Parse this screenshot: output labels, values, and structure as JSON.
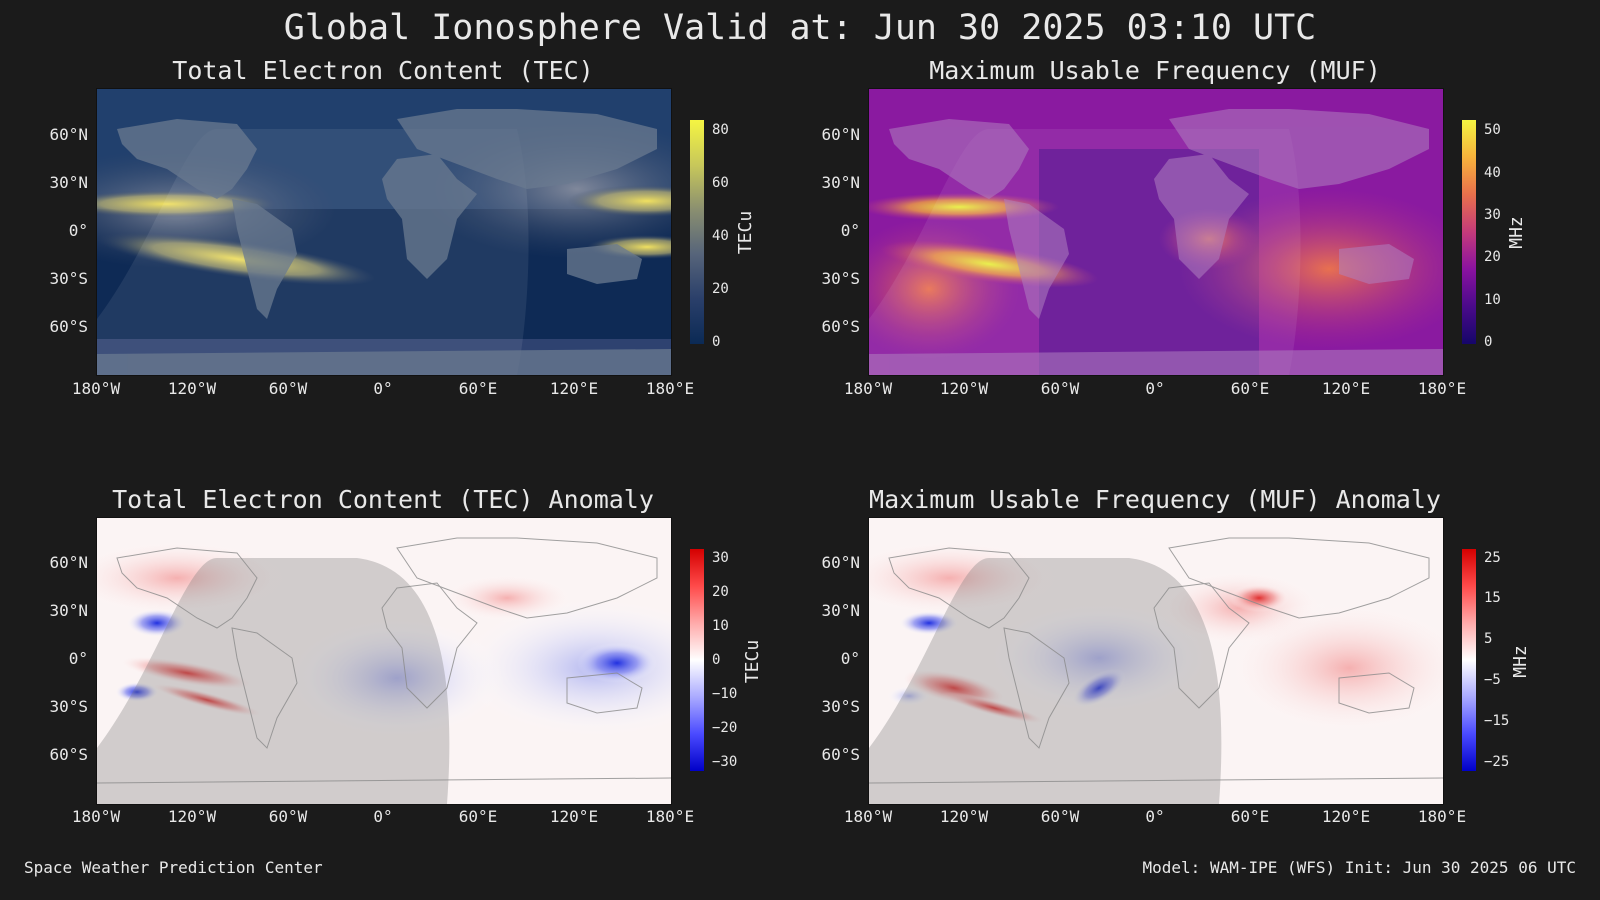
{
  "title": "Global Ionosphere Valid at: Jun 30 2025 03:10 UTC",
  "lat_ticks": [
    "60°N",
    "30°N",
    "0°",
    "30°S",
    "60°S"
  ],
  "lon_ticks": [
    "180°W",
    "120°W",
    "60°W",
    "0°",
    "60°E",
    "120°E",
    "180°E"
  ],
  "panels": [
    {
      "title": "Total Electron Content (TEC)",
      "unit": "TECu",
      "ticks": [
        "80",
        "60",
        "40",
        "20",
        "0"
      ],
      "gradient": "linear-gradient(to bottom,#f5f542,#c8c85a,#8a8f70,#56647a,#2a3f6a,#0b2a55)"
    },
    {
      "title": "Maximum Usable Frequency (MUF)",
      "unit": "MHz",
      "ticks": [
        "50",
        "40",
        "30",
        "20",
        "10",
        "0"
      ],
      "gradient": "linear-gradient(to bottom,#f5f542,#f7b23c,#e8704c,#c53b7a,#8a12a0,#4a0a8a,#15066a)"
    },
    {
      "title": "Total Electron Content (TEC) Anomaly",
      "unit": "TECu",
      "ticks": [
        "30",
        "20",
        "10",
        "0",
        "−10",
        "−20",
        "−30"
      ],
      "gradient": "linear-gradient(to bottom,#d40000,#ff4a4a,#ffaaaa,#ffffff,#aaaaff,#4a4aff,#0000c8)"
    },
    {
      "title": "Maximum Usable Frequency (MUF) Anomaly",
      "unit": "MHz",
      "ticks": [
        "25",
        "15",
        "5",
        "−5",
        "−15",
        "−25"
      ],
      "gradient": "linear-gradient(to bottom,#d40000,#ff4a4a,#ffaaaa,#ffffff,#aaaaff,#4a4aff,#0000c8)"
    }
  ],
  "footer_left": "Space Weather Prediction Center",
  "footer_right": "Model: WAM-IPE (WFS) Init: Jun 30 2025 06 UTC"
}
